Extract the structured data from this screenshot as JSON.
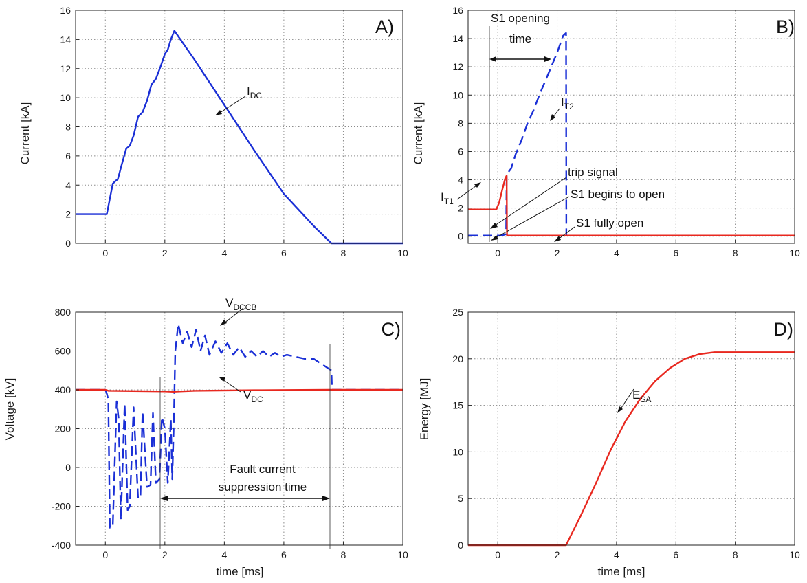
{
  "figure": {
    "xlabel": "time [ms]",
    "colors": {
      "blue": "#1a2fd6",
      "red": "#e8281f",
      "axis": "#222222",
      "grid": "#8a8a8a",
      "annotation": "#111111"
    }
  },
  "chart_data": [
    {
      "id": "A",
      "panel_label": "A)",
      "type": "line",
      "xlabel": "",
      "ylabel": "Current [kA]",
      "xlim": [
        -1,
        10
      ],
      "ylim": [
        0,
        16
      ],
      "xticks": [
        0,
        2,
        4,
        6,
        8,
        10
      ],
      "yticks": [
        0,
        2,
        4,
        6,
        8,
        10,
        12,
        14,
        16
      ],
      "grid": true,
      "series": [
        {
          "name": "IDC",
          "style": "solid",
          "color": "#1a2fd6",
          "x": [
            -1,
            0.05,
            0.25,
            0.35,
            0.42,
            0.55,
            0.7,
            0.82,
            0.95,
            1.1,
            1.25,
            1.4,
            1.55,
            1.7,
            1.85,
            2.0,
            2.1,
            2.2,
            2.32,
            3.0,
            4.0,
            5.0,
            6.0,
            7.0,
            7.6,
            10
          ],
          "y": [
            2,
            2,
            4.1,
            4.3,
            4.4,
            5.4,
            6.5,
            6.7,
            7.4,
            8.7,
            9.0,
            9.8,
            10.9,
            11.3,
            12.1,
            13.0,
            13.3,
            14.0,
            14.6,
            12.6,
            9.5,
            6.4,
            3.4,
            1.2,
            0,
            0
          ]
        }
      ],
      "annotations": [
        {
          "text": "I",
          "sub": "DC",
          "point": [
            4.0,
            9.3
          ]
        }
      ]
    },
    {
      "id": "B",
      "panel_label": "B)",
      "type": "line",
      "xlabel": "",
      "ylabel": "Current [kA]",
      "xlim": [
        -1,
        10
      ],
      "ylim": [
        -0.5,
        16
      ],
      "xticks": [
        0,
        2,
        4,
        6,
        8,
        10
      ],
      "yticks": [
        0,
        2,
        4,
        6,
        8,
        10,
        12,
        14,
        16
      ],
      "grid": true,
      "series": [
        {
          "name": "IT2",
          "style": "dashed",
          "color": "#1a2fd6",
          "x": [
            -1,
            0.1,
            0.2,
            0.28,
            0.3,
            0.34,
            0.45,
            0.6,
            0.8,
            1.0,
            1.2,
            1.4,
            1.6,
            1.8,
            2.0,
            2.2,
            2.3,
            2.31,
            2.35,
            10
          ],
          "y": [
            0.05,
            0.05,
            0.1,
            0.15,
            4.3,
            4.5,
            4.8,
            5.8,
            6.8,
            8.0,
            8.9,
            10.0,
            11.0,
            12.0,
            13.0,
            14.2,
            14.4,
            0.05,
            0.05,
            0.05
          ]
        },
        {
          "name": "IT1",
          "style": "solid",
          "color": "#e8281f",
          "x": [
            -1,
            -0.05,
            0.05,
            0.15,
            0.25,
            0.3,
            0.31,
            10
          ],
          "y": [
            1.9,
            1.9,
            2.4,
            3.3,
            4.1,
            4.3,
            0.05,
            0.05
          ]
        }
      ],
      "annotations": [
        {
          "text": "I",
          "sub": "T1"
        },
        {
          "text": "I",
          "sub": "T2"
        },
        {
          "text": "trip signal"
        },
        {
          "text": "S1 begins to open"
        },
        {
          "text": "S1 fully open"
        },
        {
          "text": "S1 opening"
        },
        {
          "text": "time"
        }
      ]
    },
    {
      "id": "C",
      "panel_label": "C)",
      "type": "line",
      "xlabel": "time [ms]",
      "ylabel": "Voltage [kV]",
      "xlim": [
        -1,
        10
      ],
      "ylim": [
        -400,
        800
      ],
      "xticks": [
        0,
        2,
        4,
        6,
        8,
        10
      ],
      "yticks": [
        -400,
        -200,
        0,
        200,
        400,
        600,
        800
      ],
      "grid": true,
      "series": [
        {
          "name": "VDCCB",
          "style": "dashed",
          "color": "#1a2fd6",
          "x": [
            -1,
            0.0,
            0.05,
            0.1,
            0.15,
            0.25,
            0.38,
            0.45,
            0.52,
            0.65,
            0.75,
            0.82,
            0.95,
            1.1,
            1.18,
            1.25,
            1.4,
            1.52,
            1.6,
            1.7,
            1.82,
            1.9,
            2.0,
            2.1,
            2.2,
            2.25,
            2.3,
            2.35,
            2.45,
            2.6,
            2.75,
            2.9,
            3.05,
            3.2,
            3.35,
            3.5,
            3.7,
            3.9,
            4.1,
            4.3,
            4.5,
            4.7,
            4.9,
            5.1,
            5.3,
            5.5,
            5.7,
            5.9,
            6.1,
            6.4,
            6.7,
            7.0,
            7.3,
            7.6,
            7.62,
            7.7,
            10
          ],
          "y": [
            400,
            400,
            380,
            350,
            -310,
            -300,
            340,
            250,
            -270,
            330,
            -220,
            -200,
            310,
            -160,
            -150,
            290,
            -100,
            -90,
            280,
            -80,
            -60,
            260,
            200,
            -80,
            250,
            -60,
            220,
            600,
            740,
            640,
            700,
            620,
            710,
            600,
            680,
            580,
            650,
            590,
            640,
            580,
            620,
            570,
            600,
            570,
            600,
            570,
            590,
            570,
            580,
            570,
            560,
            560,
            530,
            500,
            400,
            400,
            400
          ]
        },
        {
          "name": "VDC",
          "style": "solid",
          "color": "#e8281f",
          "x": [
            -1,
            0.0,
            0.1,
            2.0,
            2.3,
            2.5,
            3.0,
            5.0,
            7.5,
            10
          ],
          "y": [
            400,
            400,
            395,
            392,
            390,
            392,
            395,
            398,
            400,
            400
          ]
        }
      ],
      "annotations": [
        {
          "text": "V",
          "sub": "DCCB"
        },
        {
          "text": "V",
          "sub": "DC"
        },
        {
          "text": "Fault current"
        },
        {
          "text": "suppression time"
        }
      ]
    },
    {
      "id": "D",
      "panel_label": "D)",
      "type": "line",
      "xlabel": "time [ms]",
      "ylabel": "Energy [MJ]",
      "xlim": [
        -1,
        10
      ],
      "ylim": [
        0,
        25
      ],
      "xticks": [
        0,
        2,
        4,
        6,
        8,
        10
      ],
      "yticks": [
        0,
        5,
        10,
        15,
        20,
        25
      ],
      "grid": true,
      "series": [
        {
          "name": "ESA",
          "style": "solid",
          "color": "#e8281f",
          "x": [
            -1,
            2.3,
            2.8,
            3.3,
            3.8,
            4.3,
            4.8,
            5.3,
            5.8,
            6.3,
            6.8,
            7.3,
            7.6,
            10
          ],
          "y": [
            0,
            0,
            3.2,
            6.6,
            10.2,
            13.3,
            15.7,
            17.6,
            19.0,
            20.0,
            20.5,
            20.7,
            20.7,
            20.7
          ]
        }
      ],
      "annotations": [
        {
          "text": "E",
          "sub": "SA"
        }
      ]
    }
  ]
}
